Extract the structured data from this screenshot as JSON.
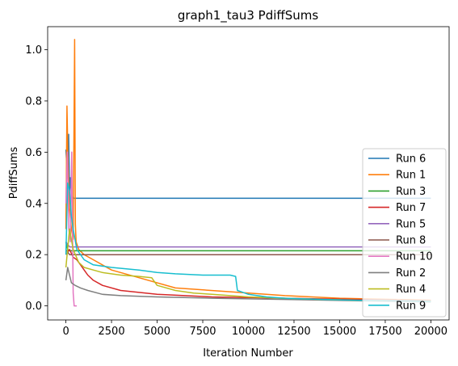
{
  "chart_data": {
    "type": "line",
    "title": "graph1_tau3 PdiffSums",
    "xlabel": "Iteration Number",
    "ylabel": "PdiffSums",
    "xlim": [
      -1000,
      21000
    ],
    "ylim": [
      -0.055,
      1.09
    ],
    "x_ticks": [
      0,
      2500,
      5000,
      7500,
      10000,
      12500,
      15000,
      17500,
      20000
    ],
    "x_tick_labels": [
      "0",
      "2500",
      "5000",
      "7500",
      "10000",
      "12500",
      "15000",
      "17500",
      "20000"
    ],
    "y_ticks": [
      0.0,
      0.2,
      0.4,
      0.6,
      0.8,
      1.0
    ],
    "y_tick_labels": [
      "0.0",
      "0.2",
      "0.4",
      "0.6",
      "0.8",
      "1.0"
    ],
    "legend_position": "lower-right",
    "series": [
      {
        "name": "Run 6",
        "color": "#1f77b4",
        "x": [
          0,
          50,
          100,
          150,
          200,
          250,
          300,
          400,
          500,
          20000
        ],
        "y": [
          0.61,
          0.55,
          0.58,
          0.67,
          0.45,
          0.5,
          0.43,
          0.42,
          0.42,
          0.42
        ]
      },
      {
        "name": "Run 1",
        "color": "#ff7f0e",
        "x": [
          0,
          60,
          120,
          200,
          300,
          400,
          480,
          520,
          560,
          700,
          1000,
          1500,
          2500,
          4000,
          6000,
          9000,
          12000,
          15000,
          18000,
          20000
        ],
        "y": [
          0.3,
          0.78,
          0.55,
          0.38,
          0.3,
          0.26,
          1.04,
          0.32,
          0.25,
          0.22,
          0.2,
          0.18,
          0.14,
          0.11,
          0.07,
          0.055,
          0.04,
          0.03,
          0.025,
          0.022
        ]
      },
      {
        "name": "Run 3",
        "color": "#2ca02c",
        "x": [
          0,
          100,
          200,
          300,
          500,
          20000
        ],
        "y": [
          0.25,
          0.22,
          0.215,
          0.215,
          0.215,
          0.215
        ]
      },
      {
        "name": "Run 7",
        "color": "#d62728",
        "x": [
          0,
          200,
          400,
          600,
          800,
          1000,
          1200,
          1500,
          2000,
          3000,
          5000,
          8000,
          12000,
          16000,
          20000
        ],
        "y": [
          0.2,
          0.22,
          0.19,
          0.18,
          0.16,
          0.14,
          0.12,
          0.1,
          0.08,
          0.06,
          0.045,
          0.035,
          0.03,
          0.025,
          0.02
        ]
      },
      {
        "name": "Run 5",
        "color": "#9467bd",
        "x": [
          0,
          100,
          200,
          300,
          500,
          20000
        ],
        "y": [
          0.25,
          0.24,
          0.23,
          0.23,
          0.23,
          0.23
        ]
      },
      {
        "name": "Run 8",
        "color": "#8c564b",
        "x": [
          0,
          100,
          200,
          300,
          500,
          20000
        ],
        "y": [
          0.22,
          0.21,
          0.2,
          0.2,
          0.2,
          0.2
        ]
      },
      {
        "name": "Run 10",
        "color": "#e377c2",
        "x": [
          0,
          80,
          160,
          240,
          320,
          400,
          450,
          500,
          600
        ],
        "y": [
          0.4,
          0.6,
          0.3,
          0.25,
          0.6,
          0.05,
          0.0,
          0.0,
          0.0
        ]
      },
      {
        "name": "Run 2",
        "color": "#7f7f7f",
        "x": [
          0,
          100,
          200,
          300,
          500,
          800,
          1200,
          2000,
          3000,
          5000,
          8000,
          12000,
          16000,
          20000
        ],
        "y": [
          0.1,
          0.15,
          0.12,
          0.09,
          0.08,
          0.07,
          0.06,
          0.045,
          0.04,
          0.035,
          0.03,
          0.025,
          0.02,
          0.015
        ]
      },
      {
        "name": "Run 4",
        "color": "#bcbd22",
        "x": [
          0,
          200,
          400,
          700,
          1000,
          1500,
          2000,
          3000,
          4000,
          4700,
          4800,
          5000,
          6000,
          7000,
          8000,
          10000,
          12000,
          14000,
          16000,
          18000,
          20000
        ],
        "y": [
          0.15,
          0.3,
          0.22,
          0.17,
          0.15,
          0.14,
          0.13,
          0.12,
          0.115,
          0.11,
          0.1,
          0.08,
          0.06,
          0.05,
          0.045,
          0.035,
          0.03,
          0.025,
          0.022,
          0.02,
          0.018
        ]
      },
      {
        "name": "Run 9",
        "color": "#17becf",
        "x": [
          0,
          100,
          200,
          300,
          400,
          600,
          800,
          1000,
          1500,
          2500,
          4000,
          5000,
          6000,
          7500,
          9000,
          9300,
          9400,
          9600,
          9800,
          10000,
          10500,
          11000,
          12000,
          14000,
          16000,
          18000,
          20000
        ],
        "y": [
          0.2,
          0.48,
          0.45,
          0.35,
          0.3,
          0.22,
          0.2,
          0.18,
          0.16,
          0.15,
          0.14,
          0.13,
          0.125,
          0.12,
          0.12,
          0.115,
          0.06,
          0.055,
          0.05,
          0.045,
          0.04,
          0.035,
          0.03,
          0.025,
          0.022,
          0.02,
          0.018
        ]
      }
    ]
  }
}
